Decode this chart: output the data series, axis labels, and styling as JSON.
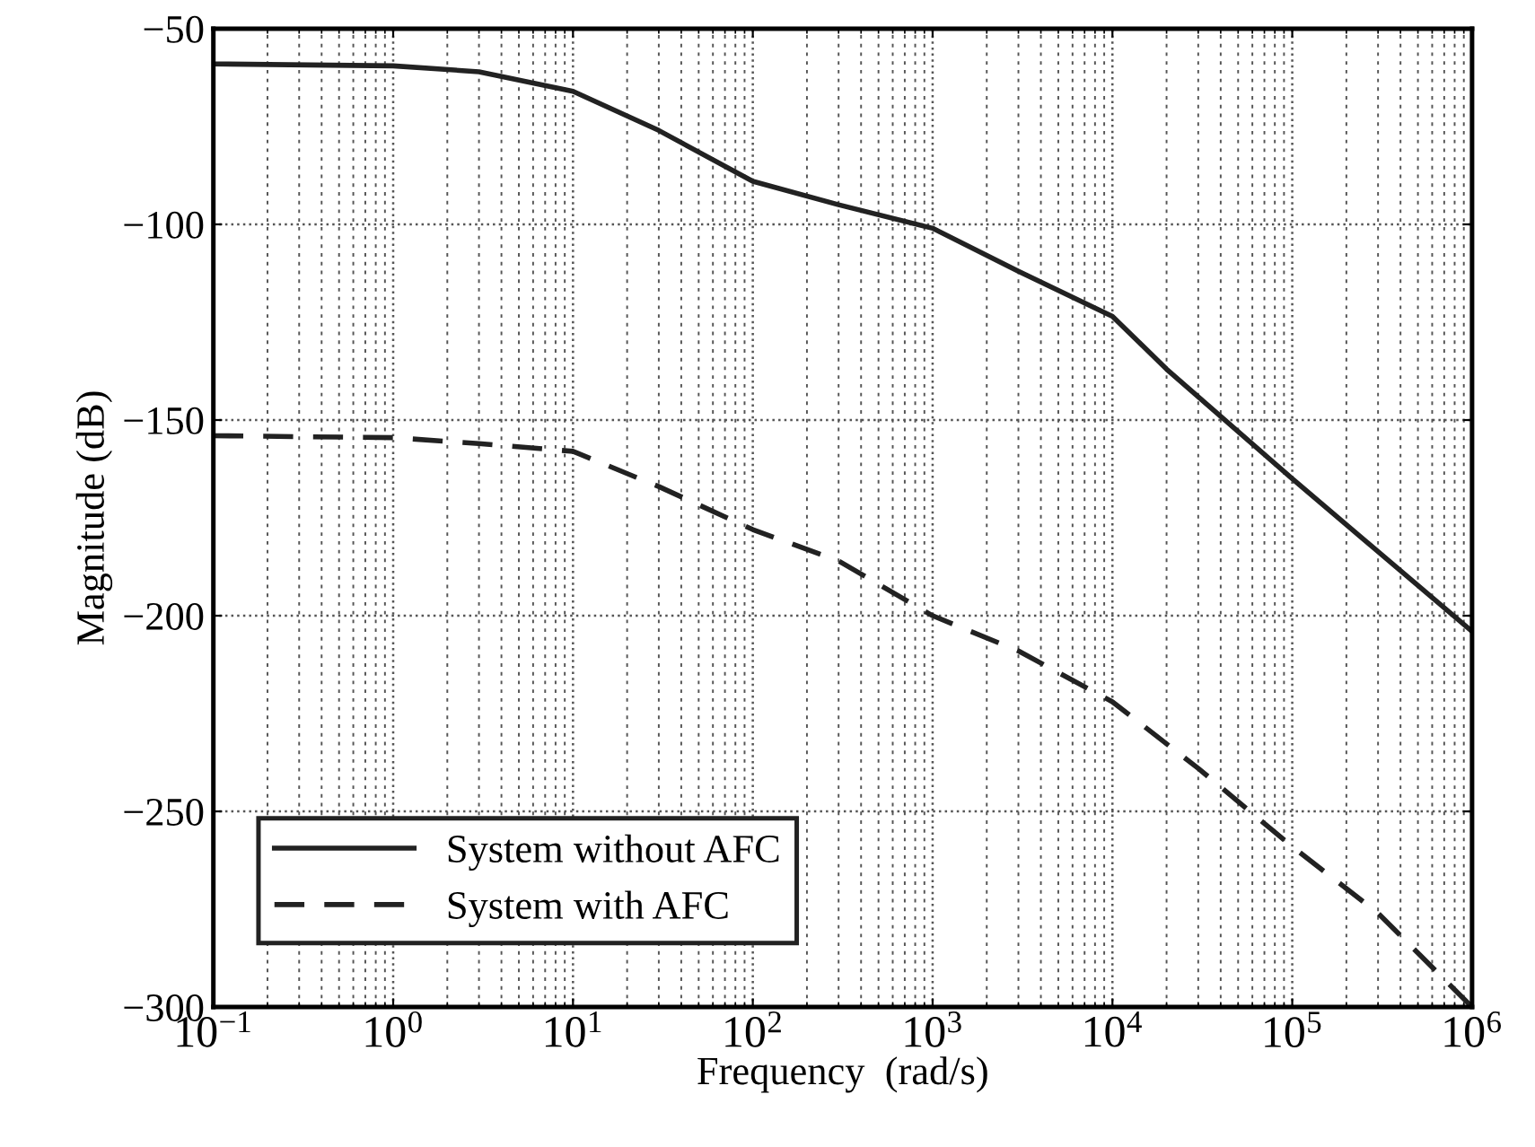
{
  "chart_data": {
    "type": "line",
    "xlabel": "Frequency  (rad/s)",
    "ylabel": "Magnitude (dB)",
    "log": "x",
    "x": [
      0.1,
      1,
      3,
      10,
      30,
      100,
      300,
      1000,
      3000,
      10000,
      20000,
      100000,
      1000000
    ],
    "series": [
      {
        "name": "System without AFC",
        "color": "#222222",
        "line_style": "solid",
        "values": [
          -59,
          -59.5,
          -61,
          -66,
          -76,
          -89,
          -95,
          -101,
          -112,
          -123.5,
          -137,
          -165,
          -204
        ]
      },
      {
        "name": "System with AFC",
        "color": "#222222",
        "line_style": "dashed",
        "x": [
          0.1,
          1,
          3,
          10,
          30,
          100,
          300,
          1000,
          3000,
          10000,
          30000,
          100000,
          300000,
          1000000
        ],
        "values": [
          -154,
          -154.5,
          -156,
          -158,
          -167,
          -178,
          -186,
          -200,
          -209,
          -222,
          -239,
          -259,
          -276,
          -300
        ]
      }
    ],
    "xlim": [
      0.1,
      1000000
    ],
    "ylim": [
      -300,
      -50
    ],
    "xticks": [
      {
        "value": 0.1,
        "label": "10$^{−1}$"
      },
      {
        "value": 1,
        "label": "10$^{0}$"
      },
      {
        "value": 10,
        "label": "10$^{1}$"
      },
      {
        "value": 100,
        "label": "10$^{2}$"
      },
      {
        "value": 1000,
        "label": "10$^{3}$"
      },
      {
        "value": 10000,
        "label": "10$^{4}$"
      },
      {
        "value": 100000,
        "label": "10$^{5}$"
      },
      {
        "value": 1000000,
        "label": "10$^{6}$"
      }
    ],
    "yticks": [
      {
        "value": -300,
        "label": "−300"
      },
      {
        "value": -250,
        "label": "−250"
      },
      {
        "value": -200,
        "label": "−200"
      },
      {
        "value": -150,
        "label": "−150"
      },
      {
        "value": -100,
        "label": "−100"
      },
      {
        "value": -50,
        "label": "−50"
      }
    ],
    "grid": true,
    "legend": "bottom left"
  }
}
